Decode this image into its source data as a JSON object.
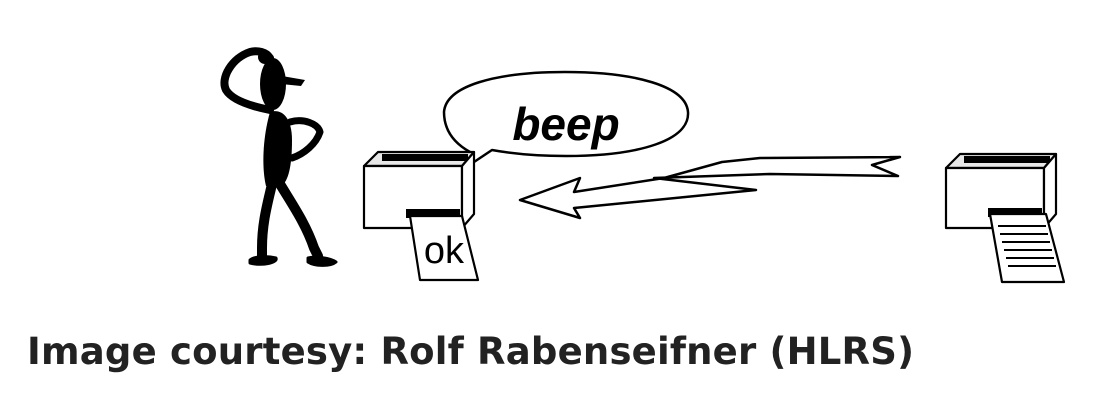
{
  "speech_bubble": {
    "text": "beep"
  },
  "receiver_printer": {
    "paper_text": "ok"
  },
  "caption": {
    "text": "Image courtesy: Rolf Rabenseifner (HLRS)"
  },
  "colors": {
    "ink": "#000000",
    "caption": "#222222",
    "printer_top": "#e4e4e4",
    "background": "#ffffff"
  },
  "icons": [
    "confused-person-icon",
    "printer-icon",
    "lightning-arrow-icon",
    "speech-bubble-icon"
  ]
}
